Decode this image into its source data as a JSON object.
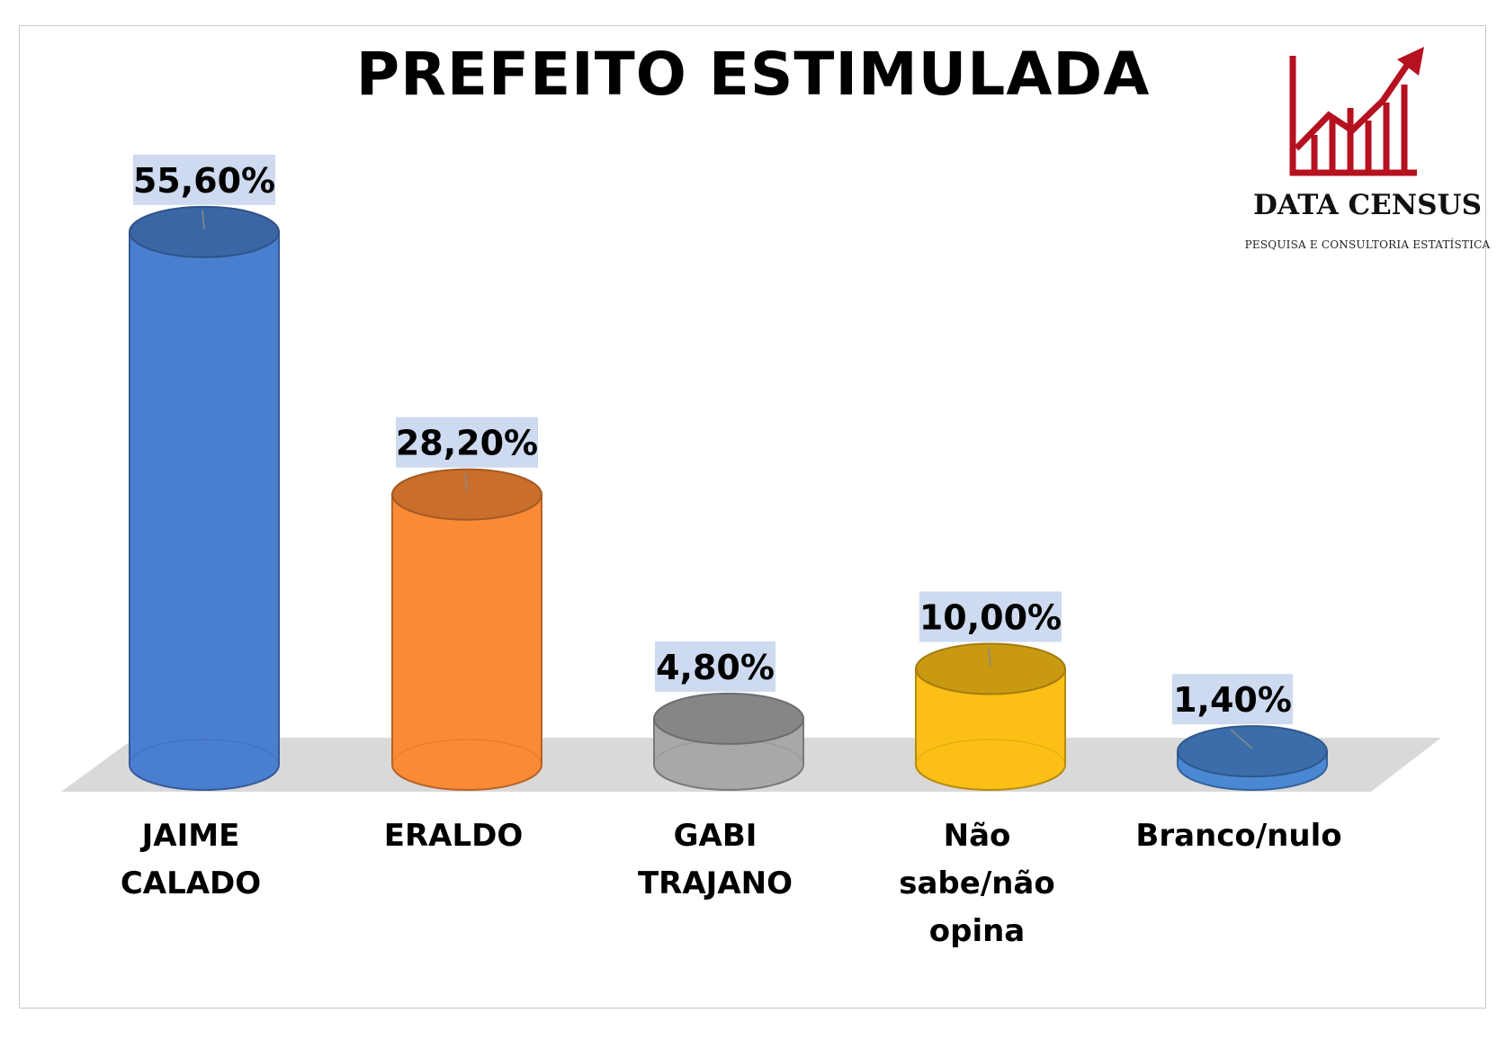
{
  "chart_data": {
    "type": "bar",
    "title": "PREFEITO ESTIMULADA",
    "categories": [
      [
        "JAIME",
        "CALADO"
      ],
      [
        "ERALDO"
      ],
      [
        "GABI",
        "TRAJANO"
      ],
      [
        "Não",
        "sabe/não",
        "opina"
      ],
      [
        "Branco/nulo"
      ]
    ],
    "values": [
      55.6,
      28.2,
      4.8,
      10.0,
      1.4
    ],
    "value_labels": [
      "55,60%",
      "28,20%",
      "4,80%",
      "10,00%",
      "1,40%"
    ],
    "colors": [
      "#4a7fd0",
      "#fb8a36",
      "#a8a8a8",
      "#fbbf16",
      "#4a88d4"
    ],
    "ylim": [
      0,
      60
    ],
    "grid": false,
    "legend": "none"
  },
  "logo": {
    "name": "DATA CENSUS",
    "tagline": "PESQUISA E CONSULTORIA ESTATÍSTICA",
    "color": "#b5111f"
  }
}
